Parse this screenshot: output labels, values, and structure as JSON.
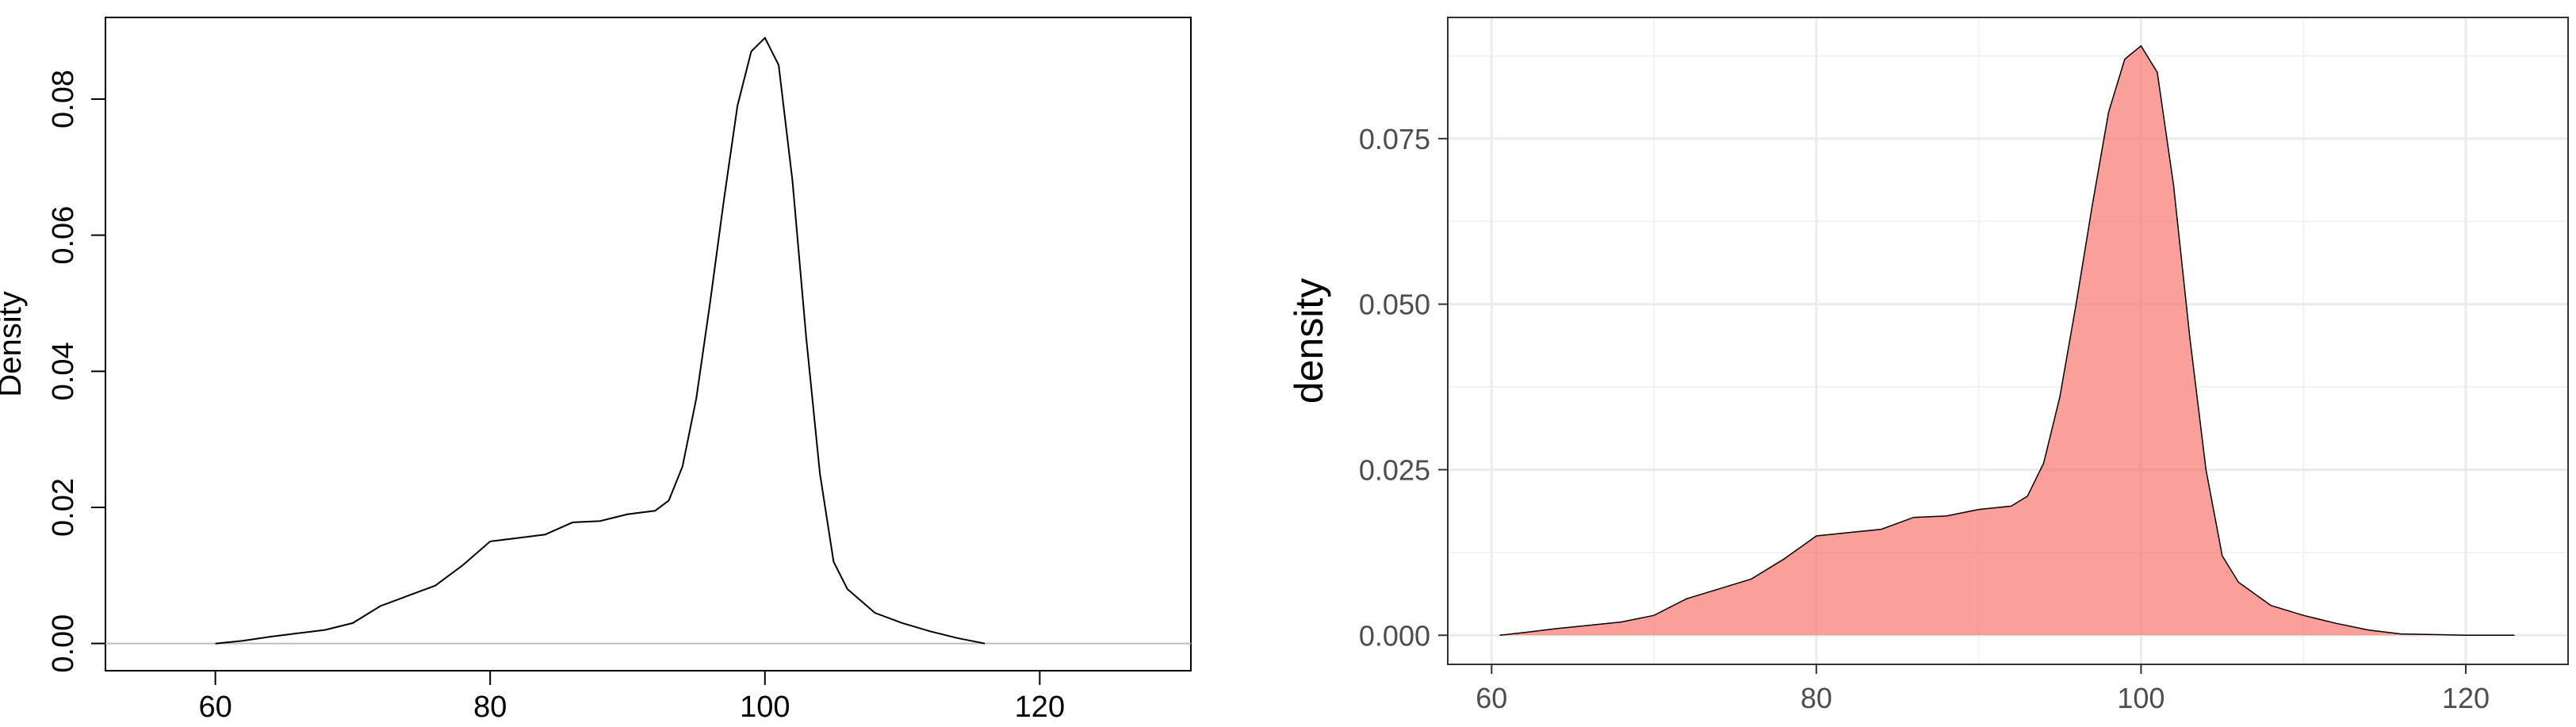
{
  "chart_data": [
    {
      "type": "line",
      "style": "base-r",
      "title": "",
      "xlabel": "",
      "ylabel": "Density",
      "xlim": [
        52,
        131
      ],
      "ylim": [
        -0.004,
        0.092
      ],
      "xticks": [
        60,
        80,
        100,
        120
      ],
      "xtick_labels": [
        "60",
        "80",
        "100",
        "120"
      ],
      "yticks": [
        0,
        0.02,
        0.04,
        0.06,
        0.08
      ],
      "ytick_labels": [
        "0.00",
        "0.02",
        "0.04",
        "0.06",
        "0.08"
      ],
      "baseline": 0,
      "grid": false,
      "line_color": "#000000",
      "series": [
        {
          "x": [
            60,
            62,
            64,
            66,
            68,
            70,
            72,
            74,
            76,
            78,
            80,
            82,
            84,
            86,
            88,
            90,
            92,
            93,
            94,
            95,
            96,
            97,
            98,
            99,
            100,
            101,
            102,
            103,
            104,
            105,
            106,
            108,
            110,
            112,
            114,
            116
          ],
          "y": [
            0.0,
            0.0004,
            0.001,
            0.0015,
            0.002,
            0.003,
            0.0055,
            0.007,
            0.0085,
            0.0115,
            0.015,
            0.0155,
            0.016,
            0.0178,
            0.018,
            0.019,
            0.0195,
            0.021,
            0.026,
            0.036,
            0.05,
            0.065,
            0.079,
            0.087,
            0.089,
            0.085,
            0.068,
            0.045,
            0.025,
            0.012,
            0.008,
            0.0045,
            0.003,
            0.0018,
            0.0008,
            0.0
          ]
        }
      ]
    },
    {
      "type": "area",
      "style": "ggplot2",
      "title": "",
      "xlabel": "",
      "ylabel": "density",
      "xlim": [
        57.3,
        126.3
      ],
      "ylim": [
        -0.0044,
        0.0933
      ],
      "xticks": [
        60,
        80,
        100,
        120
      ],
      "xtick_labels": [
        "60",
        "80",
        "100",
        "120"
      ],
      "yticks": [
        0,
        0.025,
        0.05,
        0.075
      ],
      "ytick_labels": [
        "0.000",
        "0.025",
        "0.050",
        "0.075"
      ],
      "x_minor_breaks": [
        70,
        90,
        110
      ],
      "y_minor_breaks": [
        0.0125,
        0.0375,
        0.0625,
        0.0875
      ],
      "grid": true,
      "fill_color": "#f8766d",
      "fill_opacity": 0.7,
      "line_color": "#000000",
      "series": [
        {
          "x": [
            60.5,
            62,
            64,
            66,
            68,
            70,
            72,
            74,
            76,
            78,
            80,
            82,
            84,
            86,
            88,
            90,
            92,
            93,
            94,
            95,
            96,
            97,
            98,
            99,
            100,
            101,
            102,
            103,
            104,
            105,
            106,
            108,
            110,
            112,
            114,
            116,
            118,
            120,
            123
          ],
          "y": [
            0.0,
            0.0004,
            0.001,
            0.0015,
            0.002,
            0.003,
            0.0055,
            0.007,
            0.0085,
            0.0115,
            0.015,
            0.0155,
            0.016,
            0.0178,
            0.018,
            0.019,
            0.0195,
            0.021,
            0.026,
            0.036,
            0.05,
            0.065,
            0.079,
            0.087,
            0.089,
            0.085,
            0.068,
            0.045,
            0.025,
            0.012,
            0.008,
            0.0045,
            0.003,
            0.0018,
            0.0008,
            0.0002,
            0.0001,
            0.0,
            0.0
          ]
        }
      ]
    }
  ]
}
